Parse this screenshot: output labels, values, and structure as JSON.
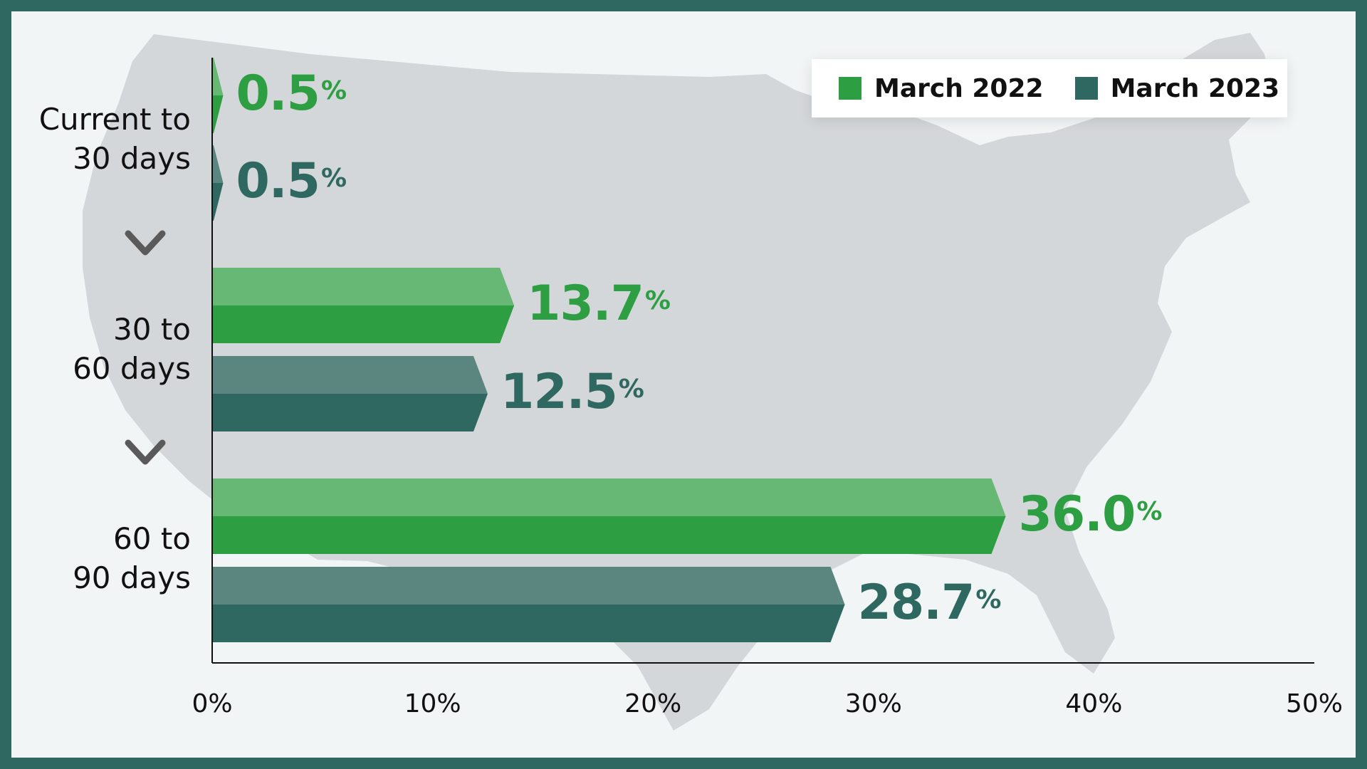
{
  "colors": {
    "march_2022": "#2e9e42",
    "march_2022_light": "#66b874",
    "march_2023": "#2f6860",
    "march_2023_light": "#5b867f",
    "map": "#d4d7d9",
    "frame": "#2f6860"
  },
  "legend": {
    "items": [
      {
        "label": "March 2022",
        "color": "#2e9e42"
      },
      {
        "label": "March 2023",
        "color": "#2f6860"
      }
    ]
  },
  "chart_data": {
    "type": "bar",
    "orientation": "horizontal",
    "categories": [
      "Current to 30 days",
      "30 to 60 days",
      "60 to 90 days"
    ],
    "category_lines": [
      [
        "Current to",
        "30 days"
      ],
      [
        "30 to",
        "60 days"
      ],
      [
        "60 to",
        "90 days"
      ]
    ],
    "series": [
      {
        "name": "March 2022",
        "values": [
          0.5,
          13.7,
          36.0
        ],
        "labels": [
          "0.5",
          "13.7",
          "36.0"
        ]
      },
      {
        "name": "March 2023",
        "values": [
          0.5,
          12.5,
          28.7
        ],
        "labels": [
          "0.5",
          "12.5",
          "28.7"
        ]
      }
    ],
    "value_suffix": "%",
    "xlim": [
      0,
      50
    ],
    "xticks": [
      "0%",
      "10%",
      "20%",
      "30%",
      "40%",
      "50%"
    ],
    "grid": false,
    "legend_position": "top-right",
    "background": "map of the United States"
  }
}
